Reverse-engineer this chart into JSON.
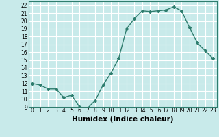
{
  "x": [
    0,
    1,
    2,
    3,
    4,
    5,
    6,
    7,
    8,
    9,
    10,
    11,
    12,
    13,
    14,
    15,
    16,
    17,
    18,
    19,
    20,
    21,
    22,
    23
  ],
  "y": [
    12,
    11.8,
    11.3,
    11.3,
    10.2,
    10.5,
    9.0,
    8.8,
    9.8,
    11.8,
    13.3,
    15.2,
    19.0,
    20.3,
    21.3,
    21.2,
    21.3,
    21.4,
    21.8,
    21.3,
    19.2,
    17.2,
    16.2,
    15.2
  ],
  "line_color": "#2e7d6e",
  "marker": "D",
  "markersize": 2.0,
  "linewidth": 1.0,
  "bg_color": "#c8eaea",
  "grid_color": "#ffffff",
  "xlabel": "Humidex (Indice chaleur)",
  "xlim": [
    -0.5,
    23.5
  ],
  "ylim": [
    9,
    22.5
  ],
  "yticks": [
    9,
    10,
    11,
    12,
    13,
    14,
    15,
    16,
    17,
    18,
    19,
    20,
    21,
    22
  ],
  "xticks": [
    0,
    1,
    2,
    3,
    4,
    5,
    6,
    7,
    8,
    9,
    10,
    11,
    12,
    13,
    14,
    15,
    16,
    17,
    18,
    19,
    20,
    21,
    22,
    23
  ],
  "tick_fontsize": 5.5,
  "label_fontsize": 7.5
}
